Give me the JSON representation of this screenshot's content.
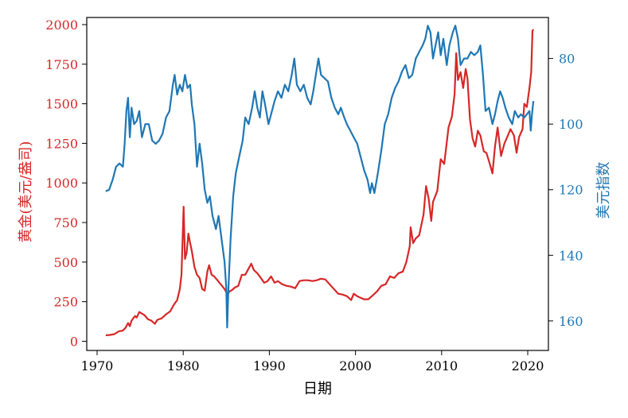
{
  "chart_data": {
    "type": "line",
    "title": "",
    "xlabel": "日期",
    "ylabel_left": "黄金(美元/盎司)",
    "ylabel_right": "美元指数",
    "x_ticks": [
      "1970",
      "1980",
      "1990",
      "2000",
      "2010",
      "2020"
    ],
    "y_left_ticks": [
      "0",
      "250",
      "500",
      "750",
      "1000",
      "1250",
      "1500",
      "1750",
      "2000"
    ],
    "y_right_ticks": [
      "80",
      "100",
      "120",
      "140",
      "160"
    ],
    "xlim": [
      1968.8,
      2022.4
    ],
    "ylim_left": [
      -58,
      2045
    ],
    "ylim_right": [
      169,
      67.5
    ],
    "y_right_inverted": true,
    "grid": false,
    "colors": {
      "gold": "#d62728",
      "usd": "#1f77b4",
      "axis": "#000000"
    },
    "series": [
      {
        "name": "黄金",
        "axis": "left",
        "color": "#d62728",
        "points": [
          [
            1971.0,
            38
          ],
          [
            1971.5,
            40
          ],
          [
            1972.0,
            45
          ],
          [
            1972.5,
            62
          ],
          [
            1973.0,
            68
          ],
          [
            1973.3,
            85
          ],
          [
            1973.6,
            115
          ],
          [
            1973.8,
            95
          ],
          [
            1974.0,
            130
          ],
          [
            1974.4,
            160
          ],
          [
            1974.6,
            150
          ],
          [
            1974.9,
            185
          ],
          [
            1975.2,
            175
          ],
          [
            1975.5,
            165
          ],
          [
            1975.9,
            140
          ],
          [
            1976.3,
            130
          ],
          [
            1976.7,
            110
          ],
          [
            1977.0,
            135
          ],
          [
            1977.5,
            145
          ],
          [
            1978.0,
            170
          ],
          [
            1978.5,
            190
          ],
          [
            1978.9,
            230
          ],
          [
            1979.3,
            260
          ],
          [
            1979.6,
            330
          ],
          [
            1979.8,
            420
          ],
          [
            1980.05,
            850
          ],
          [
            1980.2,
            520
          ],
          [
            1980.4,
            560
          ],
          [
            1980.6,
            680
          ],
          [
            1980.8,
            620
          ],
          [
            1981.0,
            570
          ],
          [
            1981.3,
            470
          ],
          [
            1981.6,
            420
          ],
          [
            1981.9,
            400
          ],
          [
            1982.2,
            330
          ],
          [
            1982.5,
            320
          ],
          [
            1982.8,
            440
          ],
          [
            1983.0,
            480
          ],
          [
            1983.3,
            420
          ],
          [
            1983.6,
            410
          ],
          [
            1983.9,
            390
          ],
          [
            1984.2,
            370
          ],
          [
            1984.5,
            350
          ],
          [
            1984.8,
            330
          ],
          [
            1985.1,
            300
          ],
          [
            1985.4,
            315
          ],
          [
            1985.7,
            325
          ],
          [
            1986.0,
            340
          ],
          [
            1986.4,
            350
          ],
          [
            1986.8,
            420
          ],
          [
            1987.2,
            420
          ],
          [
            1987.6,
            460
          ],
          [
            1987.9,
            490
          ],
          [
            1988.2,
            450
          ],
          [
            1988.6,
            430
          ],
          [
            1989.0,
            400
          ],
          [
            1989.4,
            370
          ],
          [
            1989.8,
            380
          ],
          [
            1990.2,
            410
          ],
          [
            1990.6,
            370
          ],
          [
            1991.0,
            380
          ],
          [
            1991.5,
            360
          ],
          [
            1992.0,
            350
          ],
          [
            1992.5,
            345
          ],
          [
            1993.0,
            335
          ],
          [
            1993.5,
            380
          ],
          [
            1994.0,
            385
          ],
          [
            1994.5,
            385
          ],
          [
            1995.0,
            380
          ],
          [
            1995.5,
            385
          ],
          [
            1996.0,
            395
          ],
          [
            1996.5,
            390
          ],
          [
            1997.0,
            360
          ],
          [
            1997.5,
            330
          ],
          [
            1998.0,
            300
          ],
          [
            1998.5,
            295
          ],
          [
            1999.0,
            285
          ],
          [
            1999.5,
            260
          ],
          [
            1999.8,
            300
          ],
          [
            2000.2,
            285
          ],
          [
            2000.6,
            275
          ],
          [
            2001.0,
            265
          ],
          [
            2001.5,
            265
          ],
          [
            2002.0,
            290
          ],
          [
            2002.5,
            315
          ],
          [
            2003.0,
            350
          ],
          [
            2003.5,
            360
          ],
          [
            2004.0,
            410
          ],
          [
            2004.5,
            400
          ],
          [
            2005.0,
            430
          ],
          [
            2005.5,
            440
          ],
          [
            2005.9,
            500
          ],
          [
            2006.3,
            600
          ],
          [
            2006.4,
            720
          ],
          [
            2006.7,
            620
          ],
          [
            2007.0,
            650
          ],
          [
            2007.4,
            670
          ],
          [
            2007.9,
            800
          ],
          [
            2008.2,
            980
          ],
          [
            2008.5,
            900
          ],
          [
            2008.8,
            760
          ],
          [
            2009.0,
            880
          ],
          [
            2009.5,
            950
          ],
          [
            2009.9,
            1150
          ],
          [
            2010.3,
            1120
          ],
          [
            2010.8,
            1350
          ],
          [
            2011.2,
            1420
          ],
          [
            2011.5,
            1560
          ],
          [
            2011.7,
            1820
          ],
          [
            2011.9,
            1650
          ],
          [
            2012.2,
            1700
          ],
          [
            2012.5,
            1600
          ],
          [
            2012.8,
            1720
          ],
          [
            2013.0,
            1660
          ],
          [
            2013.3,
            1400
          ],
          [
            2013.6,
            1280
          ],
          [
            2013.9,
            1230
          ],
          [
            2014.2,
            1330
          ],
          [
            2014.5,
            1300
          ],
          [
            2014.9,
            1200
          ],
          [
            2015.2,
            1190
          ],
          [
            2015.6,
            1120
          ],
          [
            2015.9,
            1060
          ],
          [
            2016.2,
            1230
          ],
          [
            2016.5,
            1350
          ],
          [
            2016.9,
            1170
          ],
          [
            2017.3,
            1250
          ],
          [
            2017.7,
            1300
          ],
          [
            2018.0,
            1340
          ],
          [
            2018.4,
            1300
          ],
          [
            2018.7,
            1190
          ],
          [
            2019.0,
            1290
          ],
          [
            2019.4,
            1340
          ],
          [
            2019.6,
            1500
          ],
          [
            2019.9,
            1480
          ],
          [
            2020.2,
            1600
          ],
          [
            2020.4,
            1700
          ],
          [
            2020.55,
            1960
          ],
          [
            2020.65,
            1970
          ]
        ]
      },
      {
        "name": "美元指数",
        "axis": "right",
        "color": "#1f77b4",
        "points": [
          [
            1971.0,
            120.5
          ],
          [
            1971.4,
            120
          ],
          [
            1971.8,
            117
          ],
          [
            1972.2,
            113
          ],
          [
            1972.6,
            112
          ],
          [
            1973.0,
            113
          ],
          [
            1973.2,
            106
          ],
          [
            1973.4,
            96
          ],
          [
            1973.6,
            92
          ],
          [
            1973.8,
            104
          ],
          [
            1974.0,
            95
          ],
          [
            1974.3,
            100
          ],
          [
            1974.6,
            99
          ],
          [
            1974.9,
            96
          ],
          [
            1975.2,
            104
          ],
          [
            1975.6,
            100
          ],
          [
            1976.0,
            100
          ],
          [
            1976.4,
            105
          ],
          [
            1976.8,
            106
          ],
          [
            1977.2,
            105
          ],
          [
            1977.6,
            103
          ],
          [
            1978.0,
            98
          ],
          [
            1978.4,
            96
          ],
          [
            1978.8,
            88
          ],
          [
            1979.0,
            85
          ],
          [
            1979.3,
            91
          ],
          [
            1979.6,
            88
          ],
          [
            1979.9,
            90
          ],
          [
            1980.2,
            85
          ],
          [
            1980.5,
            89
          ],
          [
            1980.8,
            88
          ],
          [
            1981.0,
            94
          ],
          [
            1981.3,
            100
          ],
          [
            1981.6,
            113
          ],
          [
            1981.9,
            106
          ],
          [
            1982.2,
            112
          ],
          [
            1982.5,
            120
          ],
          [
            1982.8,
            124
          ],
          [
            1983.1,
            122
          ],
          [
            1983.4,
            128
          ],
          [
            1983.8,
            132
          ],
          [
            1984.1,
            128
          ],
          [
            1984.5,
            136
          ],
          [
            1984.8,
            142
          ],
          [
            1985.0,
            150
          ],
          [
            1985.1,
            162
          ],
          [
            1985.25,
            150
          ],
          [
            1985.5,
            135
          ],
          [
            1985.8,
            122
          ],
          [
            1986.1,
            115
          ],
          [
            1986.5,
            110
          ],
          [
            1986.9,
            105
          ],
          [
            1987.2,
            98
          ],
          [
            1987.6,
            100
          ],
          [
            1988.0,
            95
          ],
          [
            1988.3,
            90
          ],
          [
            1988.6,
            95
          ],
          [
            1988.9,
            98
          ],
          [
            1989.2,
            90
          ],
          [
            1989.5,
            94
          ],
          [
            1989.9,
            100
          ],
          [
            1990.2,
            97
          ],
          [
            1990.6,
            93
          ],
          [
            1991.0,
            90
          ],
          [
            1991.4,
            92
          ],
          [
            1991.8,
            88
          ],
          [
            1992.2,
            90
          ],
          [
            1992.6,
            85
          ],
          [
            1992.9,
            80
          ],
          [
            1993.2,
            88
          ],
          [
            1993.6,
            90
          ],
          [
            1994.0,
            88
          ],
          [
            1994.4,
            92
          ],
          [
            1994.8,
            94
          ],
          [
            1995.1,
            90
          ],
          [
            1995.4,
            85
          ],
          [
            1995.7,
            80
          ],
          [
            1996.0,
            85
          ],
          [
            1996.4,
            86
          ],
          [
            1996.8,
            87
          ],
          [
            1997.2,
            92
          ],
          [
            1997.6,
            95
          ],
          [
            1998.0,
            97
          ],
          [
            1998.3,
            95
          ],
          [
            1998.7,
            98
          ],
          [
            1999.0,
            100
          ],
          [
            1999.4,
            102
          ],
          [
            1999.8,
            104
          ],
          [
            2000.2,
            106
          ],
          [
            2000.6,
            110
          ],
          [
            2001.0,
            114
          ],
          [
            2001.4,
            117
          ],
          [
            2001.7,
            121
          ],
          [
            2001.9,
            118
          ],
          [
            2002.2,
            121
          ],
          [
            2002.6,
            115
          ],
          [
            2003.0,
            108
          ],
          [
            2003.4,
            100
          ],
          [
            2003.8,
            97
          ],
          [
            2004.2,
            92
          ],
          [
            2004.6,
            89
          ],
          [
            2005.0,
            87
          ],
          [
            2005.4,
            84
          ],
          [
            2005.8,
            82
          ],
          [
            2006.2,
            86
          ],
          [
            2006.6,
            85
          ],
          [
            2007.0,
            80
          ],
          [
            2007.4,
            78
          ],
          [
            2007.8,
            76
          ],
          [
            2008.1,
            74
          ],
          [
            2008.4,
            70
          ],
          [
            2008.7,
            72
          ],
          [
            2009.0,
            80
          ],
          [
            2009.3,
            76
          ],
          [
            2009.6,
            72
          ],
          [
            2009.9,
            79
          ],
          [
            2010.2,
            74
          ],
          [
            2010.6,
            82
          ],
          [
            2010.9,
            76
          ],
          [
            2011.3,
            72
          ],
          [
            2011.6,
            70
          ],
          [
            2011.9,
            74
          ],
          [
            2012.2,
            82
          ],
          [
            2012.6,
            80
          ],
          [
            2013.0,
            80
          ],
          [
            2013.4,
            78
          ],
          [
            2013.8,
            79
          ],
          [
            2014.2,
            78
          ],
          [
            2014.5,
            76
          ],
          [
            2014.8,
            85
          ],
          [
            2015.1,
            96
          ],
          [
            2015.5,
            95
          ],
          [
            2015.9,
            100
          ],
          [
            2016.2,
            97
          ],
          [
            2016.5,
            93
          ],
          [
            2016.8,
            90
          ],
          [
            2017.1,
            92
          ],
          [
            2017.4,
            95
          ],
          [
            2017.8,
            98
          ],
          [
            2018.2,
            100
          ],
          [
            2018.5,
            96
          ],
          [
            2018.9,
            98
          ],
          [
            2019.2,
            97
          ],
          [
            2019.6,
            98
          ],
          [
            2019.9,
            97
          ],
          [
            2020.2,
            96
          ],
          [
            2020.35,
            102
          ],
          [
            2020.5,
            97
          ],
          [
            2020.65,
            93
          ]
        ]
      }
    ]
  }
}
